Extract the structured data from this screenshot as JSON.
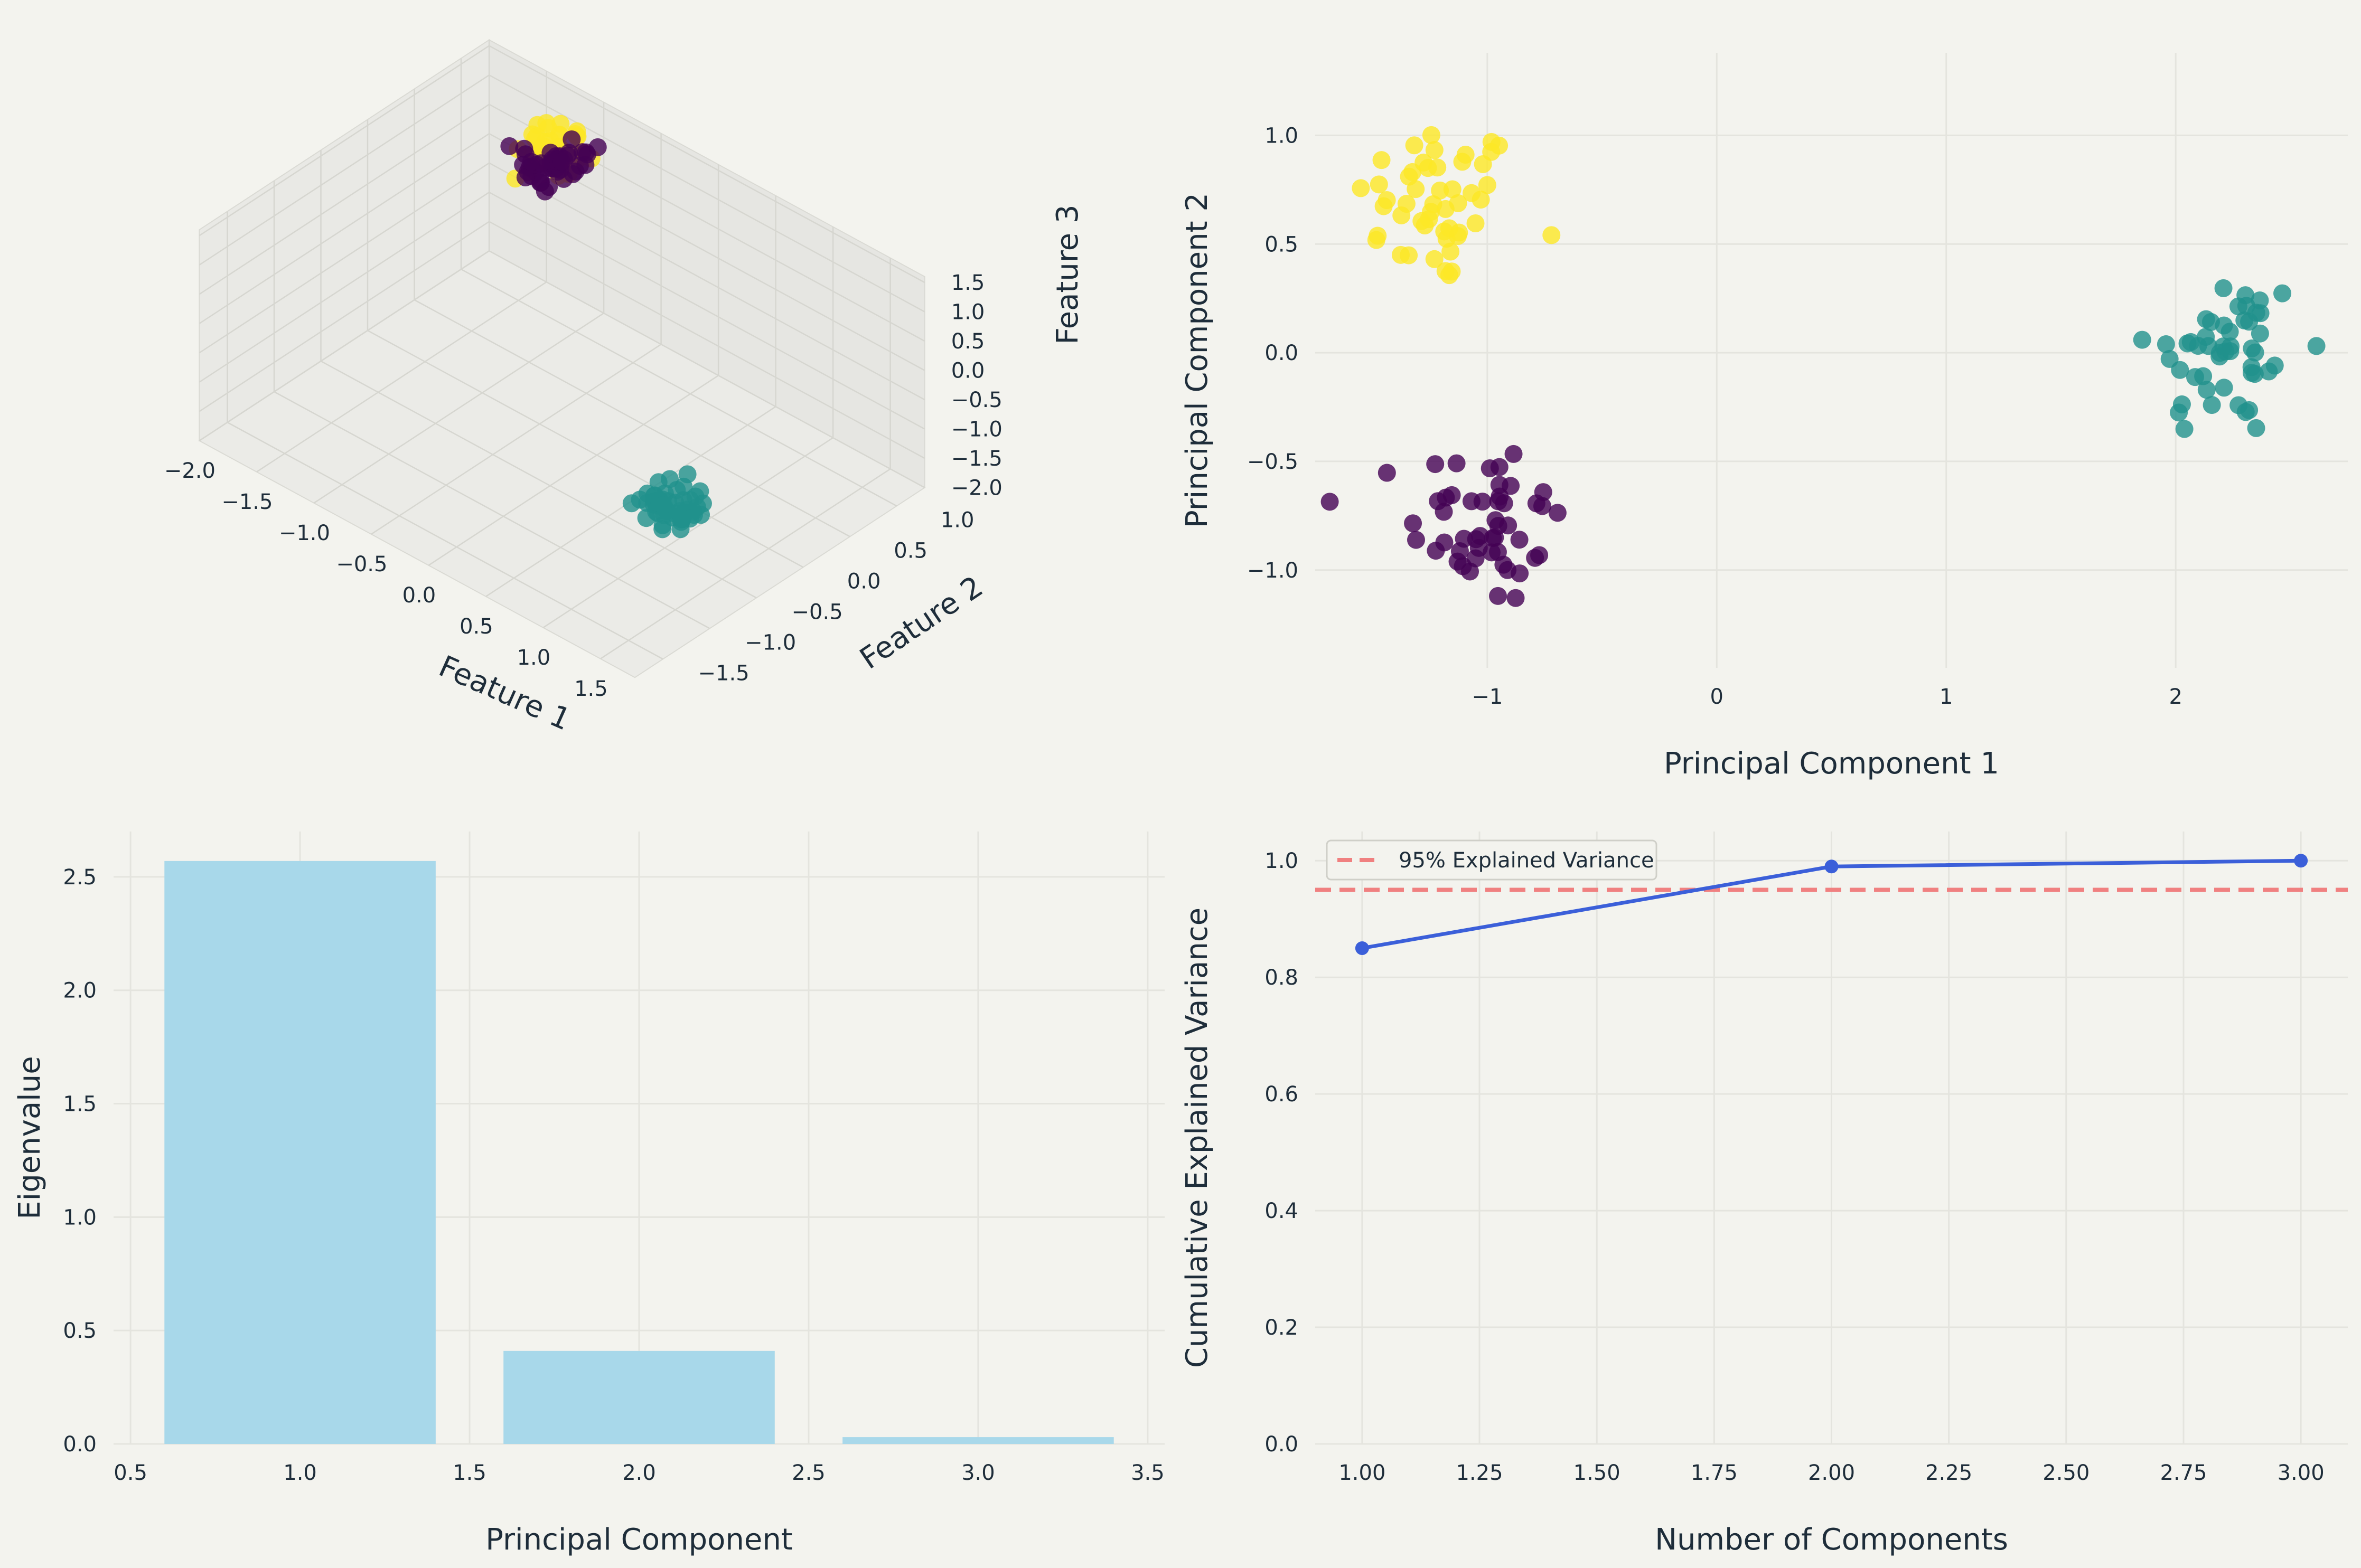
{
  "colors": {
    "background": "#f3f3ee",
    "grid": "#e4e4de",
    "cluster_purple": "#440154",
    "cluster_teal": "#21918c",
    "cluster_yellow": "#fde725",
    "bar_fill": "#a8d8ea",
    "line_blue": "#3b5fd9",
    "threshold_red": "#f08080",
    "text": "#1e2d3a"
  },
  "chart_data": [
    {
      "id": "scatter3d",
      "type": "scatter",
      "projection": "3d",
      "xlabel": "Feature 1",
      "ylabel": "Feature 2",
      "zlabel": "Feature 3",
      "xlim": [
        -2.0,
        1.8
      ],
      "ylim": [
        -1.8,
        1.3
      ],
      "zlim": [
        -2.0,
        1.6
      ],
      "x_ticks": [
        "−2.0",
        "−1.5",
        "−1.0",
        "−0.5",
        "0.0",
        "0.5",
        "1.0",
        "1.5"
      ],
      "y_ticks": [
        "−1.5",
        "−1.0",
        "−0.5",
        "0.0",
        "0.5",
        "1.0"
      ],
      "z_ticks": [
        "−2.0",
        "−1.5",
        "−1.0",
        "−0.5",
        "0.0",
        "0.5",
        "1.0",
        "1.5"
      ],
      "grid": true,
      "clusters": [
        {
          "color": "yellow",
          "center": [
            -1.1,
            0.9,
            1.1
          ],
          "spread": 0.12,
          "count": 50
        },
        {
          "color": "purple",
          "center": [
            -1.2,
            1.0,
            0.6
          ],
          "spread": 0.12,
          "count": 50
        },
        {
          "color": "teal",
          "center": [
            1.0,
            -0.4,
            -1.4
          ],
          "spread": 0.12,
          "count": 50
        }
      ]
    },
    {
      "id": "pca2d",
      "type": "scatter",
      "xlabel": "Principal Component 1",
      "ylabel": "Principal Component 2",
      "xlim": [
        -1.75,
        2.75
      ],
      "ylim": [
        -1.45,
        1.38
      ],
      "x_ticks": [
        -1,
        0,
        1,
        2
      ],
      "x_tick_labels": [
        "−1",
        "0",
        "1",
        "2"
      ],
      "y_ticks": [
        -1.0,
        -0.5,
        0.0,
        0.5,
        1.0
      ],
      "y_tick_labels": [
        "−1.0",
        "−0.5",
        "0.0",
        "0.5",
        "1.0"
      ],
      "grid": true,
      "clusters": [
        {
          "color": "yellow",
          "center": [
            -1.22,
            0.68
          ],
          "spread": [
            0.18,
            0.19
          ],
          "count": 50
        },
        {
          "color": "purple",
          "center": [
            -1.0,
            -0.78
          ],
          "spread": [
            0.17,
            0.2
          ],
          "count": 50
        },
        {
          "color": "teal",
          "center": [
            2.22,
            0.0
          ],
          "spread": [
            0.17,
            0.2
          ],
          "count": 50
        }
      ]
    },
    {
      "id": "eigen",
      "type": "bar",
      "xlabel": "Principal Component",
      "ylabel": "Eigenvalue",
      "x": [
        1,
        2,
        3
      ],
      "values": [
        2.57,
        0.41,
        0.03
      ],
      "bar_width": 0.8,
      "xlim": [
        0.45,
        3.55
      ],
      "ylim": [
        0,
        2.7
      ],
      "x_ticks": [
        0.5,
        1.0,
        1.5,
        2.0,
        2.5,
        3.0,
        3.5
      ],
      "x_tick_labels": [
        "0.5",
        "1.0",
        "1.5",
        "2.0",
        "2.5",
        "3.0",
        "3.5"
      ],
      "y_ticks": [
        0,
        0.5,
        1.0,
        1.5,
        2.0,
        2.5
      ],
      "y_tick_labels": [
        "0.0",
        "0.5",
        "1.0",
        "1.5",
        "2.0",
        "2.5"
      ],
      "grid": true
    },
    {
      "id": "cumvar",
      "type": "line",
      "xlabel": "Number of Components",
      "ylabel": "Cumulative Explained Variance",
      "x": [
        1,
        2,
        3
      ],
      "values": [
        0.85,
        0.99,
        1.0
      ],
      "threshold": 0.95,
      "legend": [
        "95% Explained Variance"
      ],
      "legend_position": "top-left",
      "xlim": [
        0.9,
        3.1
      ],
      "ylim": [
        0,
        1.05
      ],
      "x_ticks": [
        1.0,
        1.25,
        1.5,
        1.75,
        2.0,
        2.25,
        2.5,
        2.75,
        3.0
      ],
      "x_tick_labels": [
        "1.00",
        "1.25",
        "1.50",
        "1.75",
        "2.00",
        "2.25",
        "2.50",
        "2.75",
        "3.00"
      ],
      "y_ticks": [
        0,
        0.2,
        0.4,
        0.6,
        0.8,
        1.0
      ],
      "y_tick_labels": [
        "0.0",
        "0.2",
        "0.4",
        "0.6",
        "0.8",
        "1.0"
      ],
      "grid": true
    }
  ]
}
